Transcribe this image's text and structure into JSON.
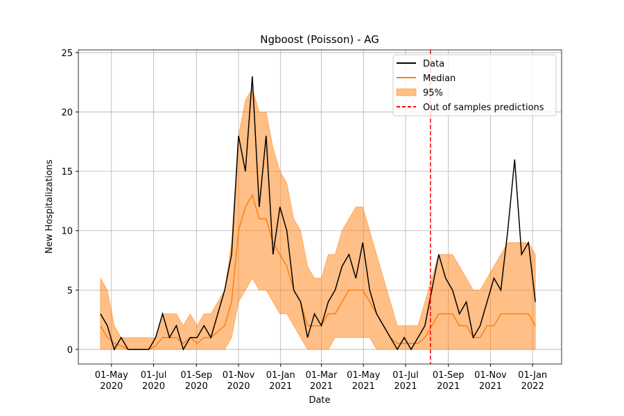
{
  "chart_data": {
    "type": "line",
    "title": "Ngboost (Poisson) - AG",
    "x_label": "Date",
    "y_label": "New Hospitalizations",
    "x": [
      "2020-04-15",
      "2020-04-25",
      "2020-05-05",
      "2020-05-15",
      "2020-05-25",
      "2020-06-04",
      "2020-06-14",
      "2020-06-24",
      "2020-07-04",
      "2020-07-14",
      "2020-07-24",
      "2020-08-03",
      "2020-08-13",
      "2020-08-23",
      "2020-09-02",
      "2020-09-12",
      "2020-09-22",
      "2020-10-02",
      "2020-10-12",
      "2020-10-22",
      "2020-11-01",
      "2020-11-11",
      "2020-11-21",
      "2020-12-01",
      "2020-12-11",
      "2020-12-21",
      "2020-12-31",
      "2021-01-10",
      "2021-01-20",
      "2021-01-30",
      "2021-02-09",
      "2021-02-19",
      "2021-03-01",
      "2021-03-11",
      "2021-03-21",
      "2021-03-31",
      "2021-04-10",
      "2021-04-20",
      "2021-04-30",
      "2021-05-10",
      "2021-05-20",
      "2021-05-30",
      "2021-06-09",
      "2021-06-19",
      "2021-06-29",
      "2021-07-09",
      "2021-07-19",
      "2021-07-29",
      "2021-08-08",
      "2021-08-18",
      "2021-08-28",
      "2021-09-07",
      "2021-09-17",
      "2021-09-27",
      "2021-10-07",
      "2021-10-17",
      "2021-10-27",
      "2021-11-06",
      "2021-11-16",
      "2021-11-26",
      "2021-12-06",
      "2021-12-16",
      "2021-12-26",
      "2022-01-05"
    ],
    "series": [
      {
        "name": "Data",
        "color": "#000000",
        "values": [
          3,
          2,
          0,
          1,
          0,
          0,
          0,
          0,
          1,
          3,
          1,
          2,
          0,
          1,
          1,
          2,
          1,
          3,
          5,
          8,
          18,
          15,
          23,
          12,
          18,
          8,
          12,
          10,
          5,
          4,
          1,
          3,
          2,
          4,
          5,
          7,
          8,
          6,
          9,
          5,
          3,
          2,
          1,
          0,
          1,
          0,
          1,
          2,
          5,
          8,
          6,
          5,
          3,
          4,
          1,
          2,
          4,
          6,
          5,
          10,
          16,
          8,
          9,
          4
        ]
      },
      {
        "name": "Median",
        "color": "#ff7f0e",
        "values": [
          2,
          1,
          0.5,
          0.3,
          0,
          0,
          0,
          0,
          0.3,
          1,
          1,
          1,
          0.5,
          1,
          0.5,
          1,
          1,
          1.5,
          2,
          4,
          10,
          12,
          13,
          11,
          11,
          9,
          8,
          7,
          5,
          4,
          2,
          2,
          2,
          3,
          3,
          4,
          5,
          5,
          5,
          4,
          3,
          2,
          1,
          0.5,
          0.5,
          0.5,
          0.5,
          1,
          2,
          3,
          3,
          3,
          2,
          2,
          1,
          1,
          2,
          2,
          3,
          3,
          3,
          3,
          3,
          2
        ]
      },
      {
        "name": "95%",
        "color": "#ff7f0e",
        "lower": [
          0,
          0,
          0,
          0,
          0,
          0,
          0,
          0,
          0,
          0,
          0,
          0,
          0,
          0,
          0,
          0,
          0,
          0,
          0,
          1,
          4,
          5,
          6,
          5,
          5,
          4,
          3,
          3,
          2,
          1,
          0,
          0,
          0,
          0,
          1,
          1,
          1,
          1,
          1,
          1,
          0,
          0,
          0,
          0,
          0,
          0,
          0,
          0,
          0,
          0,
          0,
          0,
          0,
          0,
          0,
          0,
          0,
          0,
          0,
          0,
          0,
          0,
          0,
          0
        ],
        "upper": [
          6,
          5,
          2,
          1,
          1,
          1,
          1,
          1,
          1,
          3,
          3,
          3,
          2,
          3,
          2,
          3,
          3,
          4,
          5,
          9,
          18,
          21,
          22,
          20,
          20,
          17,
          15,
          14,
          11,
          10,
          7,
          6,
          6,
          8,
          8,
          10,
          11,
          12,
          12,
          10,
          8,
          6,
          4,
          2,
          2,
          2,
          2,
          4,
          6,
          8,
          8,
          8,
          7,
          6,
          5,
          5,
          6,
          7,
          8,
          9,
          9,
          9,
          9,
          8
        ]
      }
    ],
    "vline": {
      "name": "Out of samples predictions",
      "x": "2021-08-06",
      "color": "#ff0000"
    },
    "xlim": [
      "2020-03-14",
      "2022-02-12"
    ],
    "xticks": [
      {
        "value": "2020-05-01",
        "label": "01-May 2020"
      },
      {
        "value": "2020-07-01",
        "label": "01-Jul 2020"
      },
      {
        "value": "2020-09-01",
        "label": "01-Sep 2020"
      },
      {
        "value": "2020-11-01",
        "label": "01-Nov 2020"
      },
      {
        "value": "2021-01-01",
        "label": "01-Jan 2021"
      },
      {
        "value": "2021-03-01",
        "label": "01-Mar 2021"
      },
      {
        "value": "2021-05-01",
        "label": "01-May 2021"
      },
      {
        "value": "2021-07-01",
        "label": "01-Jul 2021"
      },
      {
        "value": "2021-09-01",
        "label": "01-Sep 2021"
      },
      {
        "value": "2021-11-01",
        "label": "01-Nov 2021"
      },
      {
        "value": "2022-01-01",
        "label": "01-Jan 2022"
      }
    ],
    "ylim": [
      -1.23,
      25.23
    ],
    "yticks": [
      0,
      5,
      10,
      15,
      20,
      25
    ],
    "grid": true,
    "legend_loc": "upper right"
  }
}
